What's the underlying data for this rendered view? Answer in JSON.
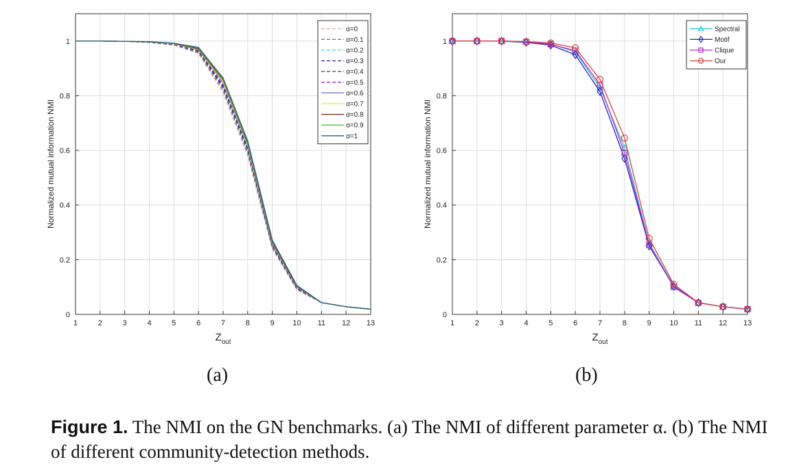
{
  "figure": {
    "caption_label": "Figure 1.",
    "caption_text": "The NMI on the GN benchmarks. (a) The NMI of different parameter α. (b) The NMI of different community-detection methods.",
    "panel_a_label": "(a)",
    "panel_b_label": "(b)"
  },
  "chart_data": [
    {
      "type": "line",
      "panel": "(a)",
      "xlabel": "Z",
      "xlabel_sub": "out",
      "ylabel": "Normalized mutual information NMI",
      "xlim": [
        1,
        13
      ],
      "ylim": [
        0,
        1.1
      ],
      "xticks": [
        1,
        2,
        3,
        4,
        5,
        6,
        7,
        8,
        9,
        10,
        11,
        12,
        13
      ],
      "yticks": [
        0,
        0.2,
        0.4,
        0.6,
        0.8,
        1
      ],
      "grid": true,
      "legend_position": "top-right",
      "x": [
        1,
        2,
        3,
        4,
        5,
        6,
        7,
        8,
        9,
        10,
        11,
        12,
        13
      ],
      "series": [
        {
          "name": "α=0",
          "color": "#f2a3a3",
          "dash": true,
          "values": [
            1,
            1,
            0.999,
            0.995,
            0.985,
            0.955,
            0.81,
            0.58,
            0.24,
            0.09,
            0.043,
            0.028,
            0.019
          ]
        },
        {
          "name": "α=0.1",
          "color": "#a05a3c",
          "dash": true,
          "values": [
            1,
            1,
            0.999,
            0.995,
            0.986,
            0.957,
            0.82,
            0.59,
            0.245,
            0.092,
            0.043,
            0.028,
            0.019
          ]
        },
        {
          "name": "α=0.2",
          "color": "#33d6e8",
          "dash": true,
          "values": [
            1,
            1,
            0.999,
            0.995,
            0.987,
            0.96,
            0.825,
            0.595,
            0.248,
            0.094,
            0.043,
            0.028,
            0.019
          ]
        },
        {
          "name": "α=0.3",
          "color": "#1a1a8c",
          "dash": true,
          "values": [
            1,
            1,
            0.999,
            0.996,
            0.988,
            0.962,
            0.83,
            0.6,
            0.25,
            0.095,
            0.043,
            0.028,
            0.019
          ]
        },
        {
          "name": "α=0.4",
          "color": "#555555",
          "dash": true,
          "values": [
            1,
            1,
            0.999,
            0.996,
            0.988,
            0.964,
            0.835,
            0.605,
            0.252,
            0.097,
            0.043,
            0.028,
            0.019
          ]
        },
        {
          "name": "α=0.5",
          "color": "#9b1fb5",
          "dash": true,
          "values": [
            1,
            1,
            0.999,
            0.996,
            0.989,
            0.966,
            0.84,
            0.61,
            0.255,
            0.099,
            0.043,
            0.028,
            0.019
          ]
        },
        {
          "name": "α=0.6",
          "color": "#6a6ae0",
          "dash": false,
          "values": [
            1,
            1,
            0.999,
            0.997,
            0.99,
            0.968,
            0.848,
            0.615,
            0.258,
            0.1,
            0.043,
            0.028,
            0.019
          ]
        },
        {
          "name": "α=0.7",
          "color": "#e8e830",
          "dash": false,
          "values": [
            1,
            1,
            0.999,
            0.997,
            0.99,
            0.97,
            0.852,
            0.62,
            0.262,
            0.102,
            0.043,
            0.028,
            0.019
          ]
        },
        {
          "name": "α=0.8",
          "color": "#6b2e1e",
          "dash": false,
          "values": [
            1,
            1,
            0.999,
            0.997,
            0.991,
            0.972,
            0.858,
            0.625,
            0.265,
            0.103,
            0.043,
            0.028,
            0.019
          ]
        },
        {
          "name": "α=0.9",
          "color": "#3ec83e",
          "dash": false,
          "values": [
            1,
            1,
            0.999,
            0.998,
            0.992,
            0.975,
            0.862,
            0.63,
            0.27,
            0.105,
            0.043,
            0.028,
            0.019
          ]
        },
        {
          "name": "α=1",
          "color": "#2a5f8a",
          "dash": false,
          "values": [
            1,
            1,
            0.999,
            0.998,
            0.992,
            0.977,
            0.865,
            0.635,
            0.272,
            0.106,
            0.043,
            0.028,
            0.019
          ]
        }
      ]
    },
    {
      "type": "line",
      "panel": "(b)",
      "xlabel": "Z",
      "xlabel_sub": "out",
      "ylabel": "Normalized mutual information NMI",
      "xlim": [
        1,
        13
      ],
      "ylim": [
        0,
        1.1
      ],
      "xticks": [
        1,
        2,
        3,
        4,
        5,
        6,
        7,
        8,
        9,
        10,
        11,
        12,
        13
      ],
      "yticks": [
        0,
        0.2,
        0.4,
        0.6,
        0.8,
        1
      ],
      "grid": true,
      "legend_position": "top-right",
      "x": [
        1,
        2,
        3,
        4,
        5,
        6,
        7,
        8,
        9,
        10,
        11,
        12,
        13
      ],
      "series": [
        {
          "name": "Spectral",
          "color": "#2ec4d8",
          "marker": "triangle",
          "values": [
            1,
            1,
            1,
            0.998,
            0.99,
            0.96,
            0.83,
            0.61,
            0.26,
            0.105,
            0.043,
            0.028,
            0.019
          ]
        },
        {
          "name": "Motif",
          "color": "#2020c0",
          "marker": "diamond",
          "values": [
            1,
            1,
            1,
            0.995,
            0.985,
            0.95,
            0.815,
            0.57,
            0.25,
            0.102,
            0.043,
            0.028,
            0.019
          ]
        },
        {
          "name": "Clique",
          "color": "#b52ab5",
          "marker": "square",
          "values": [
            1,
            1,
            1,
            0.997,
            0.988,
            0.965,
            0.84,
            0.59,
            0.255,
            0.1,
            0.042,
            0.028,
            0.019
          ]
        },
        {
          "name": "Our",
          "color": "#d84040",
          "marker": "circle",
          "values": [
            1,
            1,
            1,
            0.998,
            0.993,
            0.975,
            0.86,
            0.645,
            0.278,
            0.11,
            0.043,
            0.028,
            0.019
          ]
        }
      ]
    }
  ]
}
